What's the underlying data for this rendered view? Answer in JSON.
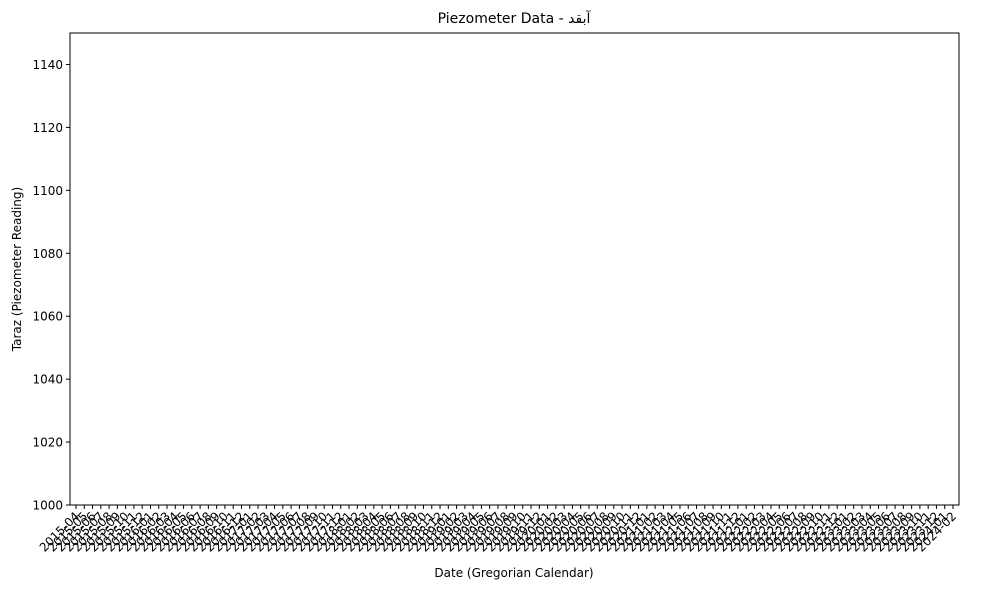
{
  "chart_data": {
    "type": "line",
    "title": "Piezometer Data - آبقد",
    "xlabel": "Date (Gregorian Calendar)",
    "ylabel": "Taraz (Piezometer Reading)",
    "ylim": [
      1000,
      1150
    ],
    "yticks": [
      1000,
      1020,
      1040,
      1060,
      1080,
      1100,
      1120,
      1140
    ],
    "xticks": [
      "2015-04",
      "2015-05",
      "2015-06",
      "2015-07",
      "2015-08",
      "2015-09",
      "2015-10",
      "2015-11",
      "2015-12",
      "2016-01",
      "2016-02",
      "2016-03",
      "2016-04",
      "2016-05",
      "2016-06",
      "2016-07",
      "2016-08",
      "2016-09",
      "2016-10",
      "2016-11",
      "2016-12",
      "2017-01",
      "2017-02",
      "2017-03",
      "2017-04",
      "2017-05",
      "2017-06",
      "2017-07",
      "2017-08",
      "2017-09",
      "2017-10",
      "2017-11",
      "2017-12",
      "2018-01",
      "2018-02",
      "2018-03",
      "2018-04",
      "2018-05",
      "2018-06",
      "2018-07",
      "2018-08",
      "2018-09",
      "2018-10",
      "2018-11",
      "2018-12",
      "2019-01",
      "2019-02",
      "2019-03",
      "2019-04",
      "2019-05",
      "2019-06",
      "2019-07",
      "2019-08",
      "2019-09",
      "2019-10",
      "2019-11",
      "2019-12",
      "2020-01",
      "2020-02",
      "2020-03",
      "2020-04",
      "2020-05",
      "2020-06",
      "2020-07",
      "2020-08",
      "2020-09",
      "2020-10",
      "2020-11",
      "2020-12",
      "2021-01",
      "2021-02",
      "2021-03",
      "2021-04",
      "2021-05",
      "2021-06",
      "2021-07",
      "2021-08",
      "2021-09",
      "2021-10",
      "2021-11",
      "2021-12",
      "2022-01",
      "2022-02",
      "2022-03",
      "2022-04",
      "2022-05",
      "2022-06",
      "2022-07",
      "2022-08",
      "2022-09",
      "2022-10",
      "2022-11",
      "2022-12",
      "2023-01",
      "2023-02",
      "2023-03",
      "2023-04",
      "2023-05",
      "2023-06",
      "2023-07",
      "2023-08",
      "2023-09",
      "2023-10",
      "2023-11",
      "2023-12",
      "2024-01",
      "2024-02"
    ],
    "series": [],
    "grid": false,
    "legend": "none"
  }
}
